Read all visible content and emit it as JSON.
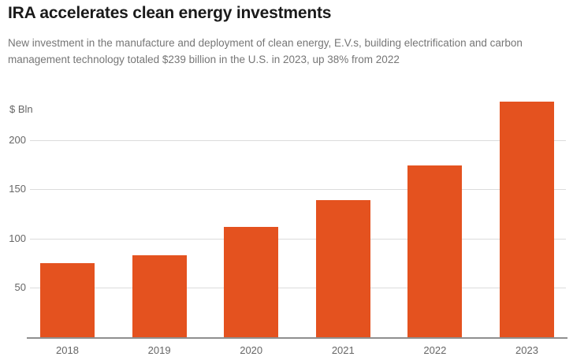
{
  "header": {
    "title": "IRA accelerates clean energy investments",
    "subtitle_lines": [
      "New investment in the manufacture and deployment of clean energy, E.V.s, building electrification and carbon",
      "management technology totaled $239 billion in the U.S. in 2023, up 38% from 2022"
    ]
  },
  "chart_data": {
    "type": "bar",
    "title": "IRA accelerates clean energy investments",
    "subtitle": "New investment in the manufacture and deployment of clean energy, E.V.s, building electrification and carbon management technology totaled $239 billion in the U.S. in 2023, up 38% from 2022",
    "categories": [
      "2018",
      "2019",
      "2020",
      "2021",
      "2022",
      "2023"
    ],
    "values": [
      75,
      83,
      112,
      139,
      174,
      239
    ],
    "xlabel": "",
    "ylabel": "$ Bln",
    "yticks": [
      50,
      100,
      150,
      200
    ],
    "ylim": [
      0,
      242
    ],
    "grid": true,
    "legend": false,
    "bar_color": "#e4521f"
  },
  "colors": {
    "bar": "#e4521f",
    "title_text": "#1a1a1a",
    "subtitle_text": "#767676",
    "axis_text": "#666666",
    "gridline": "#dcdcdc",
    "baseline": "#8f8f8f",
    "background": "#ffffff"
  }
}
